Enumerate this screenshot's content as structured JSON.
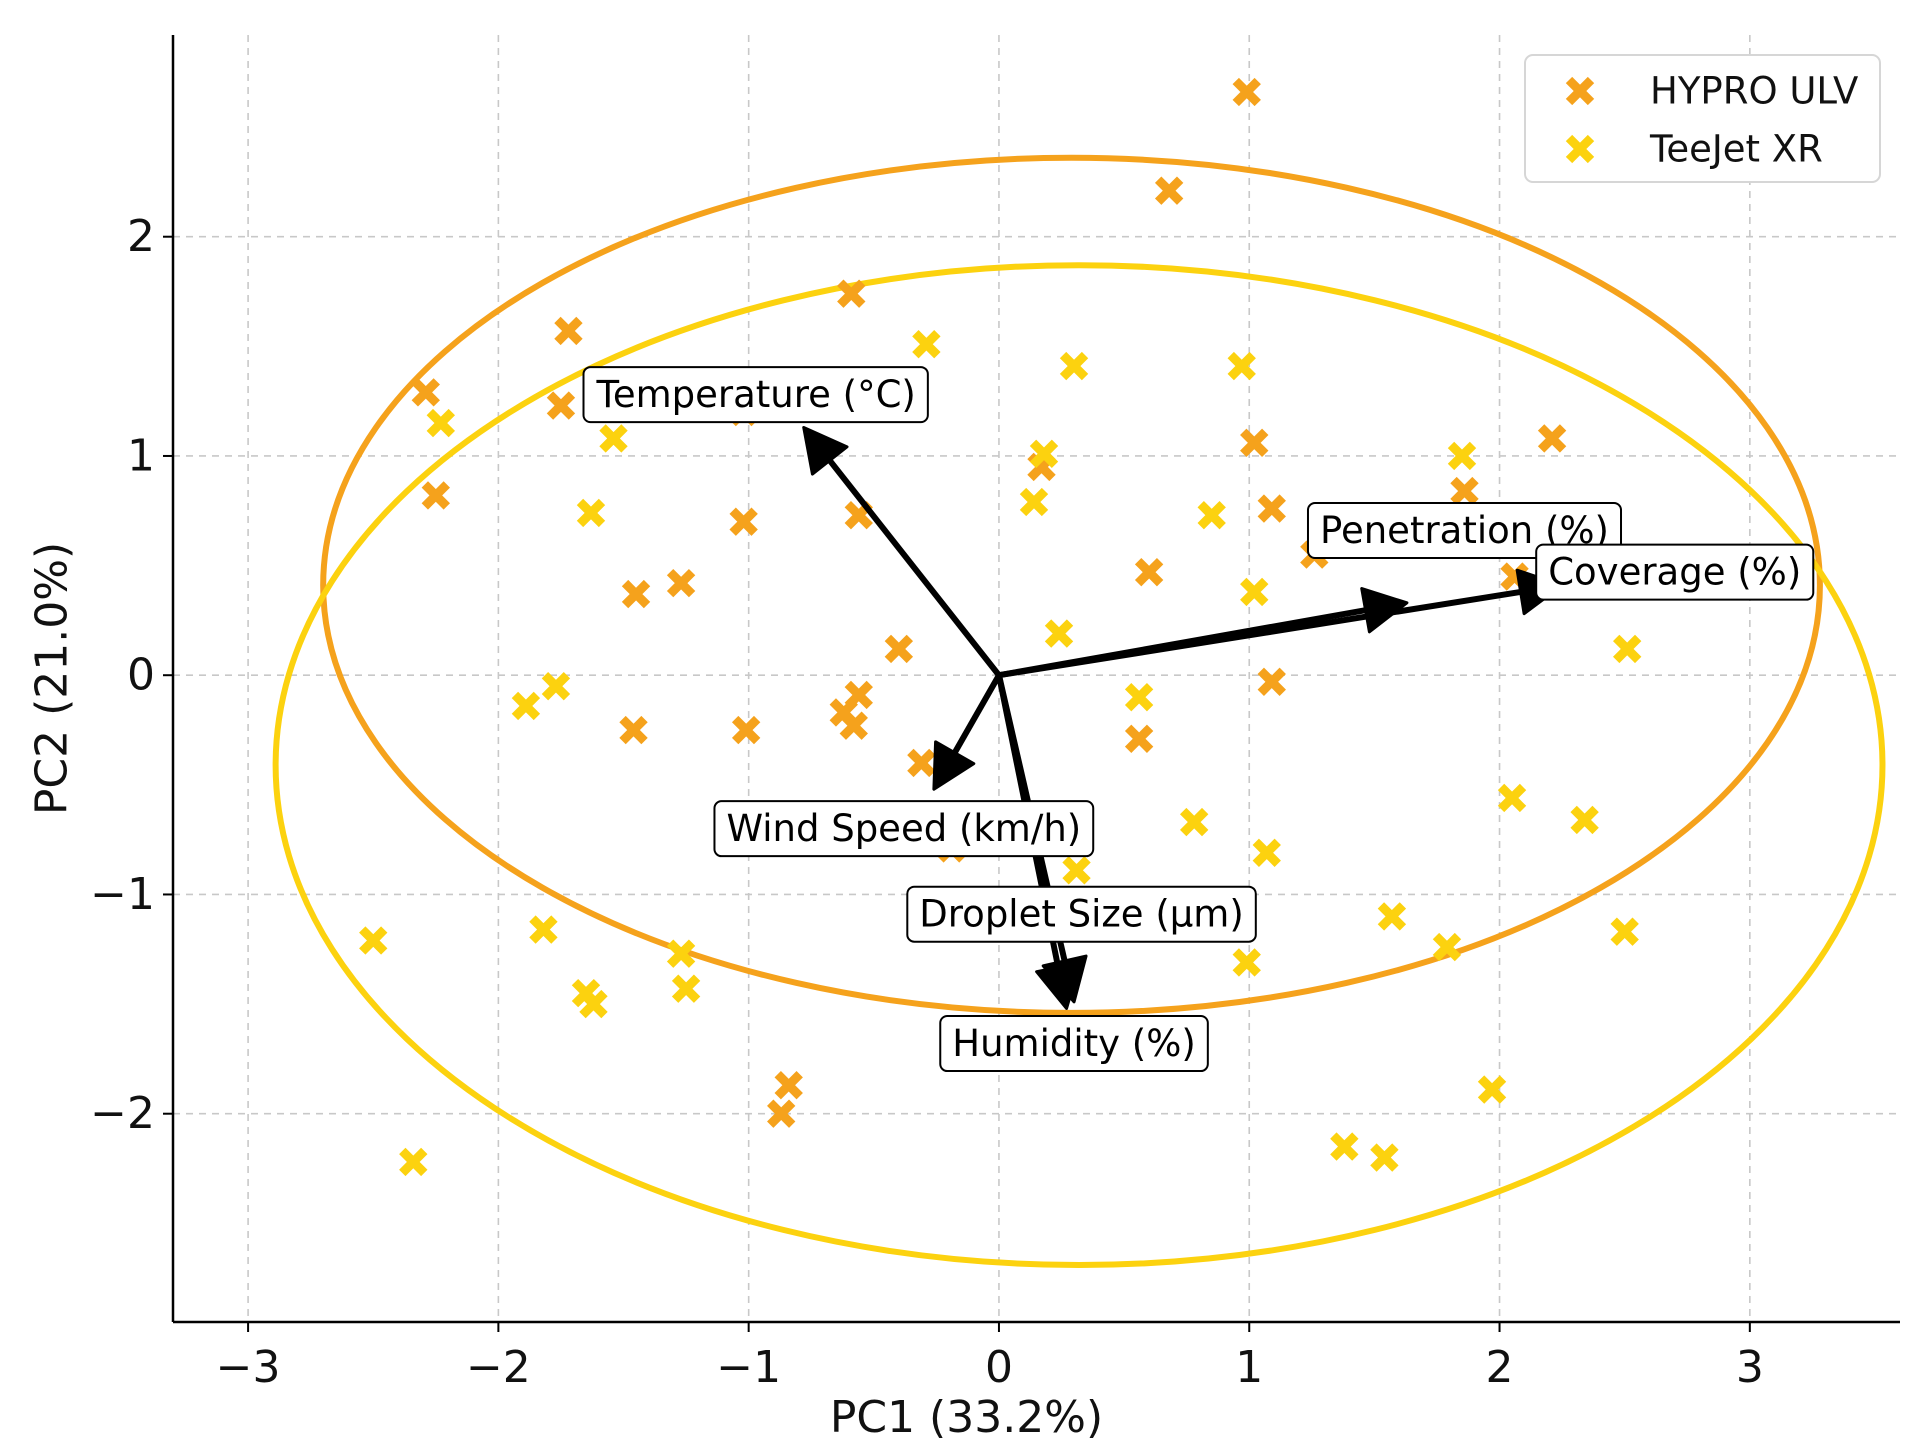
{
  "chart_data": {
    "type": "scatter",
    "title": "",
    "xlabel": "PC1 (33.2%)",
    "ylabel": "PC2 (21.0%)",
    "xlim": [
      -3.3,
      3.6
    ],
    "ylim": [
      -2.95,
      2.92
    ],
    "xticks": [
      -3,
      -2,
      -1,
      0,
      1,
      2,
      3
    ],
    "yticks": [
      -2,
      -1,
      0,
      1,
      2
    ],
    "xtick_labels": [
      "−3",
      "−2",
      "−1",
      "0",
      "1",
      "2",
      "3"
    ],
    "ytick_labels": [
      "−2",
      "−1",
      "0",
      "1",
      "2"
    ],
    "grid": true,
    "legend_position": "top-right",
    "series": [
      {
        "name": "HYPRO ULV",
        "color": "#F5A21C",
        "marker": "x",
        "points": [
          [
            0.99,
            2.66
          ],
          [
            0.68,
            2.21
          ],
          [
            -0.59,
            1.74
          ],
          [
            -1.72,
            1.57
          ],
          [
            -2.29,
            1.29
          ],
          [
            -1.75,
            1.23
          ],
          [
            -1.02,
            1.2
          ],
          [
            -2.25,
            0.82
          ],
          [
            1.02,
            1.06
          ],
          [
            2.21,
            1.08
          ],
          [
            0.17,
            0.95
          ],
          [
            1.86,
            0.84
          ],
          [
            -1.02,
            0.7
          ],
          [
            -0.56,
            0.73
          ],
          [
            1.09,
            0.76
          ],
          [
            1.26,
            0.55
          ],
          [
            0.6,
            0.47
          ],
          [
            -1.45,
            0.37
          ],
          [
            -1.27,
            0.42
          ],
          [
            2.06,
            0.45
          ],
          [
            -0.4,
            0.12
          ],
          [
            1.09,
            -0.03
          ],
          [
            -0.56,
            -0.09
          ],
          [
            -0.62,
            -0.17
          ],
          [
            -0.58,
            -0.23
          ],
          [
            -1.46,
            -0.25
          ],
          [
            -1.01,
            -0.25
          ],
          [
            0.56,
            -0.29
          ],
          [
            -0.31,
            -0.4
          ],
          [
            -0.19,
            -0.79
          ],
          [
            -0.84,
            -1.87
          ],
          [
            -0.87,
            -2.0
          ]
        ]
      },
      {
        "name": "TeeJet XR",
        "color": "#FCD20F",
        "marker": "x",
        "points": [
          [
            -0.29,
            1.51
          ],
          [
            0.3,
            1.41
          ],
          [
            0.97,
            1.41
          ],
          [
            -2.23,
            1.15
          ],
          [
            -1.54,
            1.08
          ],
          [
            0.18,
            1.01
          ],
          [
            1.85,
            1.0
          ],
          [
            0.14,
            0.79
          ],
          [
            -1.63,
            0.74
          ],
          [
            0.85,
            0.73
          ],
          [
            1.02,
            0.38
          ],
          [
            0.24,
            0.19
          ],
          [
            2.51,
            0.12
          ],
          [
            -1.77,
            -0.05
          ],
          [
            -1.89,
            -0.14
          ],
          [
            0.56,
            -0.1
          ],
          [
            2.05,
            -0.56
          ],
          [
            2.34,
            -0.66
          ],
          [
            0.78,
            -0.67
          ],
          [
            1.07,
            -0.81
          ],
          [
            0.31,
            -0.89
          ],
          [
            1.57,
            -1.1
          ],
          [
            -1.82,
            -1.16
          ],
          [
            2.5,
            -1.17
          ],
          [
            -2.5,
            -1.21
          ],
          [
            1.79,
            -1.24
          ],
          [
            -1.27,
            -1.27
          ],
          [
            0.99,
            -1.31
          ],
          [
            -1.25,
            -1.43
          ],
          [
            -1.65,
            -1.45
          ],
          [
            -1.62,
            -1.5
          ],
          [
            1.97,
            -1.89
          ],
          [
            1.38,
            -2.15
          ],
          [
            1.54,
            -2.2
          ],
          [
            -2.34,
            -2.22
          ]
        ]
      }
    ],
    "ellipses": [
      {
        "series": "HYPRO ULV",
        "color": "#F5A21C",
        "cx": 0.29,
        "cy": 0.41,
        "rx": 2.99,
        "ry": 1.95,
        "angle_deg": 0
      },
      {
        "series": "TeeJet XR",
        "color": "#FCD20F",
        "cx": 0.32,
        "cy": -0.41,
        "rx": 3.21,
        "ry": 2.28,
        "angle_deg": 0
      }
    ],
    "loadings": [
      {
        "label": "Temperature (°C)",
        "x": -0.78,
        "y": 1.13,
        "label_x": -0.97,
        "label_y": 1.28
      },
      {
        "label": "Penetration (%)",
        "x": 1.63,
        "y": 0.33,
        "label_x": 1.86,
        "label_y": 0.66
      },
      {
        "label": "Coverage (%)",
        "x": 2.25,
        "y": 0.41,
        "label_x": 2.7,
        "label_y": 0.47
      },
      {
        "label": "Wind Speed (km/h)",
        "x": -0.26,
        "y": -0.52,
        "label_x": -0.38,
        "label_y": -0.7
      },
      {
        "label": "Droplet Size (μm)",
        "x": 0.3,
        "y": -1.49,
        "label_x": 0.33,
        "label_y": -1.09
      },
      {
        "label": "Humidity (%)",
        "x": 0.27,
        "y": -1.52,
        "label_x": 0.3,
        "label_y": -1.68
      }
    ]
  }
}
